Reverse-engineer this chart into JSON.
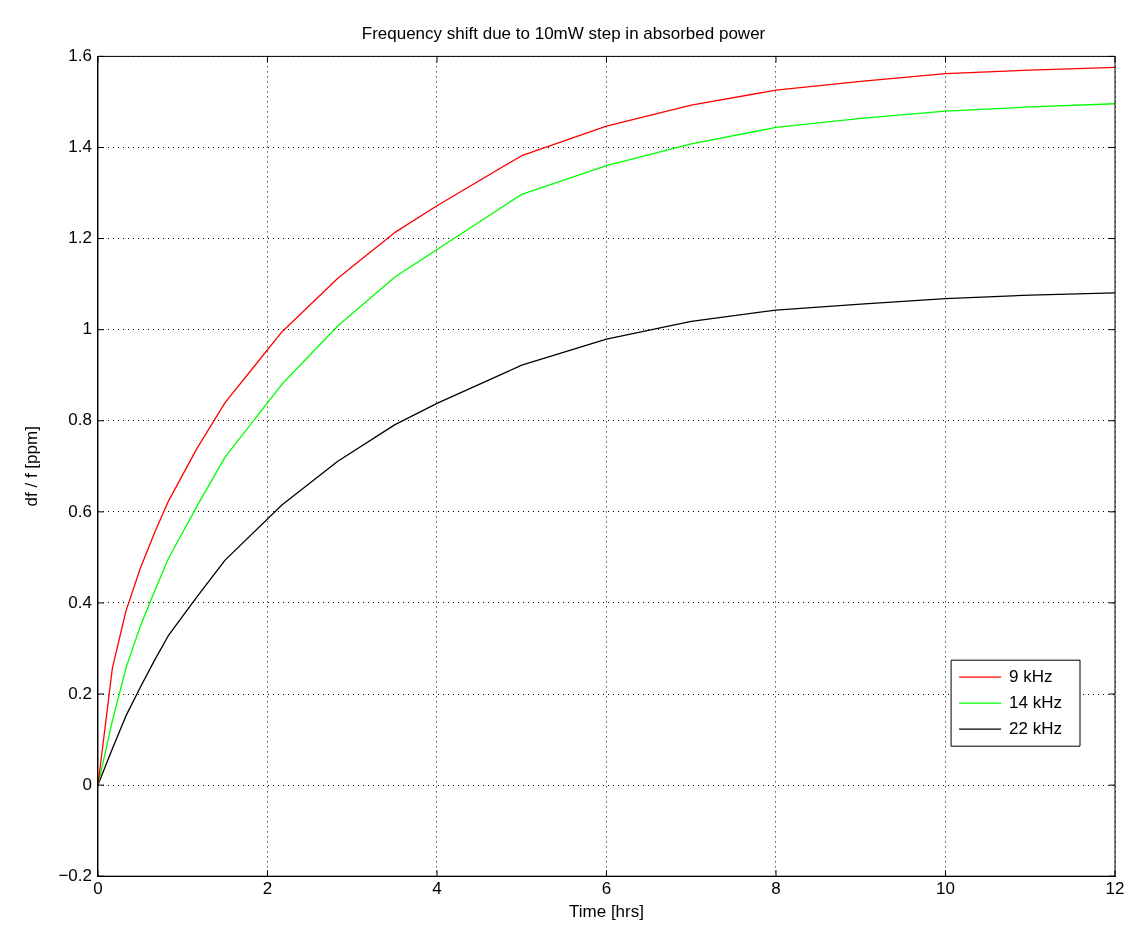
{
  "chart_data": {
    "type": "line",
    "title": "Frequency shift due to 10mW step in absorbed power",
    "xlabel": "Time [hrs]",
    "ylabel": "df / f [ppm]",
    "x": [
      0,
      0.17,
      0.33,
      0.5,
      0.67,
      0.83,
      1.17,
      1.5,
      2.17,
      2.83,
      3.5,
      4,
      5,
      6,
      7,
      8,
      9,
      10,
      11,
      12
    ],
    "series": [
      {
        "name": "9 kHz",
        "color": "#ff0000",
        "values": [
          0,
          0.257,
          0.382,
          0.476,
          0.555,
          0.623,
          0.74,
          0.84,
          0.995,
          1.113,
          1.213,
          1.272,
          1.382,
          1.447,
          1.493,
          1.526,
          1.545,
          1.562,
          1.57,
          1.576
        ]
      },
      {
        "name": "14 kHz",
        "color": "#00ff00",
        "values": [
          0,
          0.141,
          0.257,
          0.349,
          0.427,
          0.497,
          0.613,
          0.72,
          0.88,
          1.008,
          1.115,
          1.176,
          1.297,
          1.36,
          1.408,
          1.444,
          1.464,
          1.48,
          1.489,
          1.496
        ]
      },
      {
        "name": "22 kHz",
        "color": "#000000",
        "values": [
          0,
          0.08,
          0.152,
          0.215,
          0.275,
          0.328,
          0.414,
          0.494,
          0.615,
          0.711,
          0.791,
          0.838,
          0.922,
          0.979,
          1.018,
          1.043,
          1.056,
          1.068,
          1.076,
          1.081
        ]
      }
    ],
    "xlim": [
      0,
      12
    ],
    "xticks": [
      0,
      2,
      4,
      6,
      8,
      10,
      12
    ],
    "ylim": [
      -0.2,
      1.6
    ],
    "yticks": [
      {
        "value": -0.2,
        "label": "−0.2"
      },
      0,
      0.2,
      0.4,
      0.6,
      0.8,
      1,
      1.2,
      1.4,
      1.6
    ],
    "grid": true,
    "legend": "bottom right",
    "marker": "none",
    "line_style": "solid"
  }
}
